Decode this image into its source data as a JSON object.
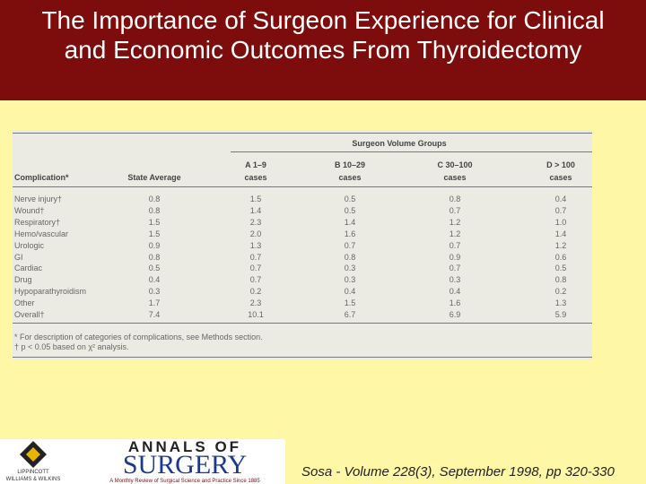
{
  "title": "The Importance of Surgeon Experience for Clinical and Economic Outcomes From Thyroidectomy",
  "table": {
    "group_header": "Surgeon Volume Groups",
    "columns": [
      [
        "Complication*"
      ],
      [
        "State Average"
      ],
      [
        "A 1–9",
        "cases"
      ],
      [
        "B 10–29",
        "cases"
      ],
      [
        "C 30–100",
        "cases"
      ],
      [
        "D > 100",
        "cases"
      ]
    ],
    "rows": [
      [
        "Nerve injury†",
        "0.8",
        "1.5",
        "0.5",
        "0.8",
        "0.4"
      ],
      [
        "Wound†",
        "0.8",
        "1.4",
        "0.5",
        "0.7",
        "0.7"
      ],
      [
        "Respiratory†",
        "1.5",
        "2.3",
        "1.4",
        "1.2",
        "1.0"
      ],
      [
        "Hemo/vascular",
        "1.5",
        "2.0",
        "1.6",
        "1.2",
        "1.4"
      ],
      [
        "Urologic",
        "0.9",
        "1.3",
        "0.7",
        "0.7",
        "1.2"
      ],
      [
        "GI",
        "0.8",
        "0.7",
        "0.8",
        "0.9",
        "0.6"
      ],
      [
        "Cardiac",
        "0.5",
        "0.7",
        "0.3",
        "0.7",
        "0.5"
      ],
      [
        "Drug",
        "0.4",
        "0.7",
        "0.3",
        "0.3",
        "0.8"
      ],
      [
        "Hypoparathyroidism",
        "0.3",
        "0.2",
        "0.4",
        "0.4",
        "0.2"
      ],
      [
        "Other",
        "1.7",
        "2.3",
        "1.5",
        "1.6",
        "1.3"
      ],
      [
        "Overall†",
        "7.4",
        "10.1",
        "6.7",
        "6.9",
        "5.9"
      ]
    ],
    "footnotes": [
      "* For description of categories of complications, see Methods section.",
      "† p < 0.05 based on χ² analysis."
    ]
  },
  "logos": {
    "publisher": [
      "LIPPINCOTT",
      "WILLIAMS & WILKINS"
    ],
    "journal": "ANNALS OF",
    "journal_big": "SURGERY",
    "tagline": "A Monthly Review of Surgical Science and Practice Since 1885"
  },
  "citation": "Sosa - Volume 228(3), September 1998, pp 320-330"
}
